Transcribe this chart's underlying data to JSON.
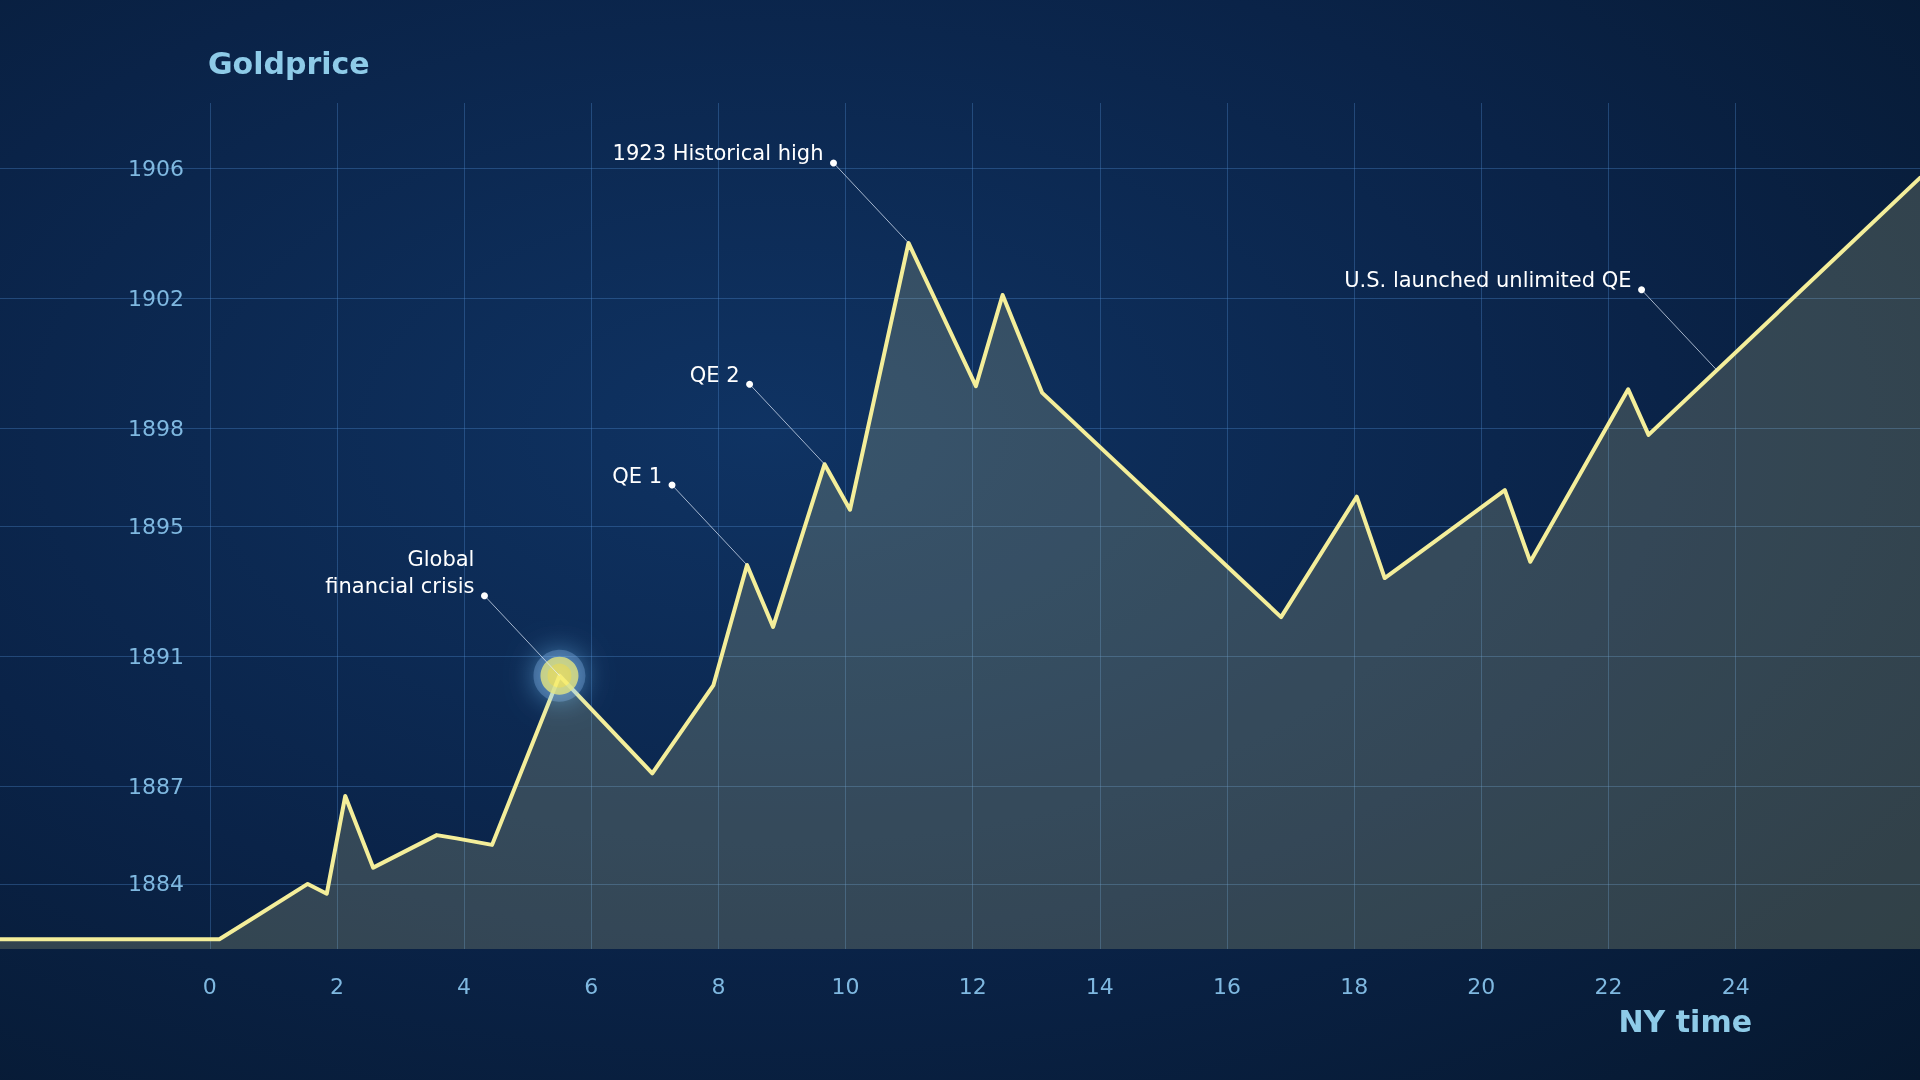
{
  "chart_data": {
    "type": "area",
    "ylabel": "Goldprice",
    "xlabel": "NY time",
    "x": [
      -3.3,
      0.15,
      1.54,
      1.84,
      2.13,
      2.57,
      3.57,
      3.88,
      4.44,
      5.5,
      6.96,
      7.92,
      8.45,
      8.86,
      9.67,
      10.07,
      10.99,
      12.05,
      12.47,
      13.09,
      16.85,
      18.04,
      18.48,
      20.37,
      20.77,
      22.31,
      22.63,
      26.9
    ],
    "series": [
      {
        "type": "area",
        "color": "#f4ee9a",
        "values": [
          1882.3,
          1882.3,
          1884.0,
          1883.7,
          1886.7,
          1884.5,
          1885.5,
          1885.4,
          1885.2,
          1890.4,
          1887.4,
          1890.1,
          1893.8,
          1891.9,
          1896.9,
          1895.5,
          1903.7,
          1899.3,
          1902.1,
          1899.1,
          1892.2,
          1895.9,
          1893.4,
          1896.1,
          1893.9,
          1899.2,
          1897.8,
          1905.7
        ]
      },
      {
        "type": "scatter",
        "color": "#fff04a",
        "x": [
          5.5
        ],
        "values": [
          1890.4
        ]
      }
    ],
    "xlim": [
      -3.3,
      26.9
    ],
    "xticks": [
      0,
      2,
      4,
      6,
      8,
      10,
      12,
      14,
      16,
      18,
      20,
      22,
      24
    ],
    "ylim": [
      1882,
      1908
    ],
    "yticks": [
      1884,
      1887,
      1891,
      1895,
      1898,
      1902,
      1906
    ],
    "grid": true,
    "annotations": [
      {
        "text": "Global\nfinancial crisis",
        "x": 5.5,
        "y": 1890.4
      },
      {
        "text": "QE 1",
        "x": 8.45,
        "y": 1893.8
      },
      {
        "text": "QE 2",
        "x": 9.67,
        "y": 1896.9
      },
      {
        "text": "1923 Historical high",
        "x": 10.99,
        "y": 1903.7
      },
      {
        "text": "U.S. launched unlimited QE",
        "x": 23.7,
        "y": 1899.8
      }
    ]
  }
}
